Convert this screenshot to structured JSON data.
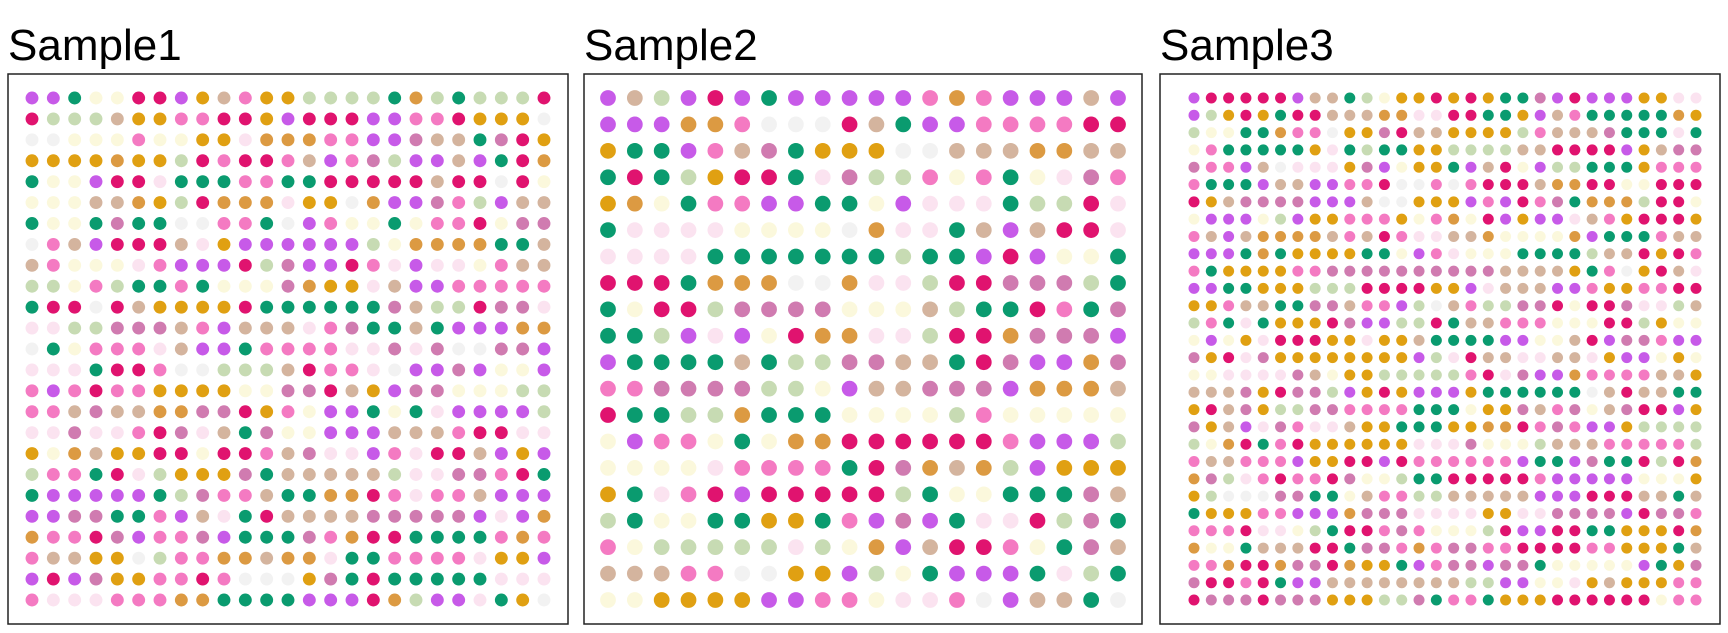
{
  "palette": {
    "green": "#0a9b6f",
    "magenta": "#e0136f",
    "purple": "#c75ae8",
    "orange": "#e0a012",
    "pink": "#f47ac2",
    "tan": "#d4b49e",
    "mauve": "#d07bb0",
    "sage": "#c7dbb3",
    "cream": "#fbf8dc",
    "blush": "#fbe3f0",
    "ochre": "#dc9a42",
    "gray": "#f2f2f2"
  },
  "chart_data": [
    {
      "type": "scatter",
      "title": "Sample1",
      "grid_cols": 25,
      "grid_rows": 25,
      "xlim": [
        0,
        24
      ],
      "ylim": [
        0,
        24
      ],
      "color_categories": [
        "green",
        "magenta",
        "purple",
        "orange",
        "pink",
        "tan",
        "mauve",
        "sage",
        "cream",
        "blush",
        "ochre",
        "gray"
      ],
      "category_weights": [
        10,
        13,
        12,
        10,
        12,
        8,
        7,
        7,
        6,
        6,
        6,
        3
      ],
      "seed": 11
    },
    {
      "type": "scatter",
      "title": "Sample2",
      "grid_cols": 20,
      "grid_rows": 20,
      "xlim": [
        0,
        19
      ],
      "ylim": [
        0,
        19
      ],
      "color_categories": [
        "green",
        "magenta",
        "purple",
        "orange",
        "pink",
        "tan",
        "mauve",
        "sage",
        "cream",
        "blush",
        "ochre",
        "gray"
      ],
      "category_weights": [
        11,
        11,
        11,
        9,
        9,
        8,
        7,
        8,
        9,
        6,
        6,
        5
      ],
      "seed": 23
    },
    {
      "type": "scatter",
      "title": "Sample3",
      "grid_cols": 30,
      "grid_rows": 30,
      "xlim": [
        0,
        29
      ],
      "ylim": [
        0,
        29
      ],
      "color_categories": [
        "green",
        "magenta",
        "purple",
        "orange",
        "pink",
        "tan",
        "mauve",
        "sage",
        "cream",
        "blush",
        "ochre",
        "gray"
      ],
      "category_weights": [
        11,
        12,
        11,
        12,
        12,
        9,
        8,
        8,
        5,
        5,
        5,
        2
      ],
      "seed": 37
    }
  ]
}
